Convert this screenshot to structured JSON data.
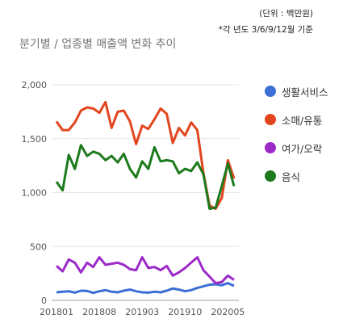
{
  "notes": {
    "unit": "(단위 : 백만원)",
    "period": "*각 년도 3/6/9/12월 기준"
  },
  "chart_data": {
    "type": "line",
    "title": "분기별 / 업종별 매출액 변화 추이",
    "xlabel": "",
    "ylabel": "",
    "ylim": [
      0,
      2000
    ],
    "yticks": [
      0,
      500,
      1000,
      1500,
      2000
    ],
    "ytick_labels": [
      "0",
      "500",
      "1,000",
      "1,500",
      "2,000"
    ],
    "xtick_labels": [
      "201801",
      "201808",
      "201903",
      "201910",
      "202005"
    ],
    "xtick_index": [
      0,
      7,
      14,
      21,
      28
    ],
    "grid": true,
    "legend_position": "right",
    "x": [
      "201801",
      "201802",
      "201803",
      "201804",
      "201805",
      "201806",
      "201807",
      "201808",
      "201809",
      "201810",
      "201811",
      "201812",
      "201901",
      "201902",
      "201903",
      "201904",
      "201905",
      "201906",
      "201907",
      "201908",
      "201909",
      "201910",
      "201911",
      "201912",
      "202001",
      "202002",
      "202003",
      "202004",
      "202005",
      "202006"
    ],
    "series": [
      {
        "name": "생활서비스",
        "color": "#3b6fd6",
        "values": [
          75,
          80,
          85,
          72,
          90,
          88,
          70,
          85,
          95,
          80,
          75,
          90,
          100,
          85,
          75,
          72,
          80,
          75,
          90,
          110,
          100,
          85,
          95,
          115,
          130,
          145,
          150,
          140,
          160,
          135
        ]
      },
      {
        "name": "소매/유통",
        "color": "#e2461e",
        "values": [
          1660,
          1580,
          1580,
          1650,
          1760,
          1790,
          1780,
          1740,
          1840,
          1600,
          1750,
          1760,
          1660,
          1450,
          1620,
          1590,
          1680,
          1780,
          1730,
          1460,
          1600,
          1530,
          1650,
          1580,
          1180,
          880,
          850,
          950,
          1300,
          1130
        ]
      },
      {
        "name": "여가/오락",
        "color": "#9b2ac9",
        "values": [
          320,
          270,
          380,
          350,
          260,
          350,
          310,
          400,
          330,
          340,
          350,
          330,
          290,
          280,
          400,
          300,
          310,
          280,
          320,
          230,
          260,
          300,
          350,
          400,
          280,
          220,
          160,
          170,
          230,
          190
        ]
      },
      {
        "name": "음식",
        "color": "#1d7a1d",
        "values": [
          1100,
          1020,
          1350,
          1220,
          1440,
          1340,
          1380,
          1360,
          1300,
          1340,
          1280,
          1360,
          1220,
          1140,
          1290,
          1220,
          1420,
          1290,
          1300,
          1290,
          1180,
          1220,
          1200,
          1280,
          1170,
          850,
          860,
          1060,
          1270,
          1060
        ]
      }
    ]
  }
}
